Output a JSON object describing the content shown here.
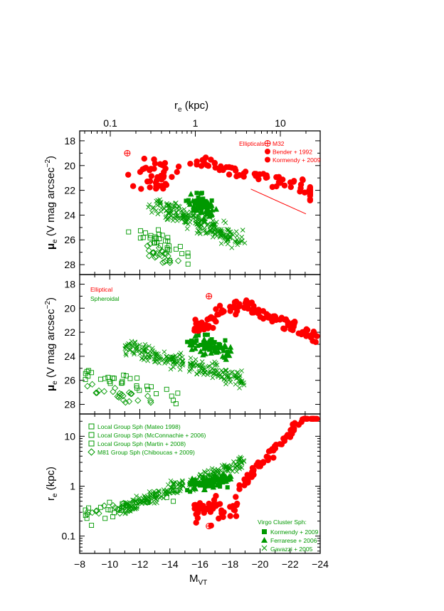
{
  "colors": {
    "elliptical": "#ff0000",
    "spheroidal": "#009900",
    "axis": "#000000"
  },
  "chart_data": [
    {
      "panel": "top",
      "type": "scatter",
      "xlabel_top": "r",
      "xlabel_top_sub": "e",
      "xlabel_top_unit": " (kpc)",
      "x_top_scale": "log",
      "x_top_ticks": [
        {
          "value": 0.1,
          "label": "0.1"
        },
        {
          "value": 1,
          "label": "1"
        },
        {
          "value": 10,
          "label": "10"
        }
      ],
      "ylabel_mu": "μ",
      "ylabel_sub": "e",
      "ylabel_rest": " (V mag arcsec",
      "ylabel_sup": "−2",
      "ylabel_close": ")",
      "ylim": [
        28.8,
        17.2
      ],
      "yticks": [
        {
          "value": 18,
          "label": "18"
        },
        {
          "value": 20,
          "label": "20"
        },
        {
          "value": 22,
          "label": "22"
        },
        {
          "value": 24,
          "label": "24"
        },
        {
          "value": 26,
          "label": "26"
        },
        {
          "value": 28,
          "label": "28"
        }
      ],
      "legend_title": "Ellipticals:",
      "legend": [
        {
          "symbol": "circle-plus",
          "color": "#ff0000",
          "label": "M32"
        },
        {
          "symbol": "filled-circle",
          "color": "#ff0000",
          "label": "Bender + 1992"
        },
        {
          "symbol": "filled-circle",
          "color": "#ff0000",
          "label": "Kormendy + 2009"
        }
      ]
    },
    {
      "panel": "middle",
      "type": "scatter",
      "ylabel_mu": "μ",
      "ylabel_sub": "e",
      "ylabel_rest": " (V mag arcsec",
      "ylabel_sup": "−2",
      "ylabel_close": ")",
      "ylim": [
        28.8,
        17.2
      ],
      "yticks": [
        {
          "value": 18,
          "label": "18"
        },
        {
          "value": 20,
          "label": "20"
        },
        {
          "value": 22,
          "label": "22"
        },
        {
          "value": 24,
          "label": "24"
        },
        {
          "value": 26,
          "label": "26"
        },
        {
          "value": 28,
          "label": "28"
        }
      ],
      "text_labels": [
        {
          "text": "Elliptical",
          "color": "#ff0000"
        },
        {
          "text": "Spheroidal",
          "color": "#009900"
        }
      ]
    },
    {
      "panel": "bottom",
      "type": "scatter",
      "xlabel_main": "M",
      "xlabel_sub": "VT",
      "xlim": [
        -8,
        -24
      ],
      "xticks": [
        {
          "value": -8,
          "label": "−8"
        },
        {
          "value": -10,
          "label": "−10"
        },
        {
          "value": -12,
          "label": "−12"
        },
        {
          "value": -14,
          "label": "−14"
        },
        {
          "value": -16,
          "label": "−16"
        },
        {
          "value": -18,
          "label": "−18"
        },
        {
          "value": -20,
          "label": "−20"
        },
        {
          "value": -22,
          "label": "−22"
        },
        {
          "value": -24,
          "label": "−24"
        }
      ],
      "ylabel_main": "r",
      "ylabel_sub": "e",
      "ylabel_unit": "   (kpc)",
      "y_scale": "log",
      "ylim": [
        0.045,
        28
      ],
      "yticks": [
        {
          "value": 0.1,
          "label": "0.1"
        },
        {
          "value": 1,
          "label": "1"
        },
        {
          "value": 10,
          "label": "10"
        }
      ],
      "legend_left": [
        {
          "symbol": "open-square",
          "color": "#009900",
          "label": "Local Group Sph (Mateo 1998)"
        },
        {
          "symbol": "open-square",
          "color": "#009900",
          "label": "Local Group Sph (McConnachie + 2006)"
        },
        {
          "symbol": "open-square",
          "color": "#009900",
          "label": "Local Group Sph (Martin + 2008)"
        },
        {
          "symbol": "open-diamond",
          "color": "#009900",
          "label": "M81  Group Sph (Chiboucas + 2009)"
        }
      ],
      "legend_right_title": "Virgo Cluster Sph:",
      "legend_right": [
        {
          "symbol": "filled-square",
          "color": "#009900",
          "label": "Kormendy + 2009"
        },
        {
          "symbol": "filled-triangle",
          "color": "#009900",
          "label": "Ferrarese + 2006"
        },
        {
          "symbol": "cross",
          "color": "#009900",
          "label": "Gavazzi + 2005"
        }
      ]
    }
  ]
}
